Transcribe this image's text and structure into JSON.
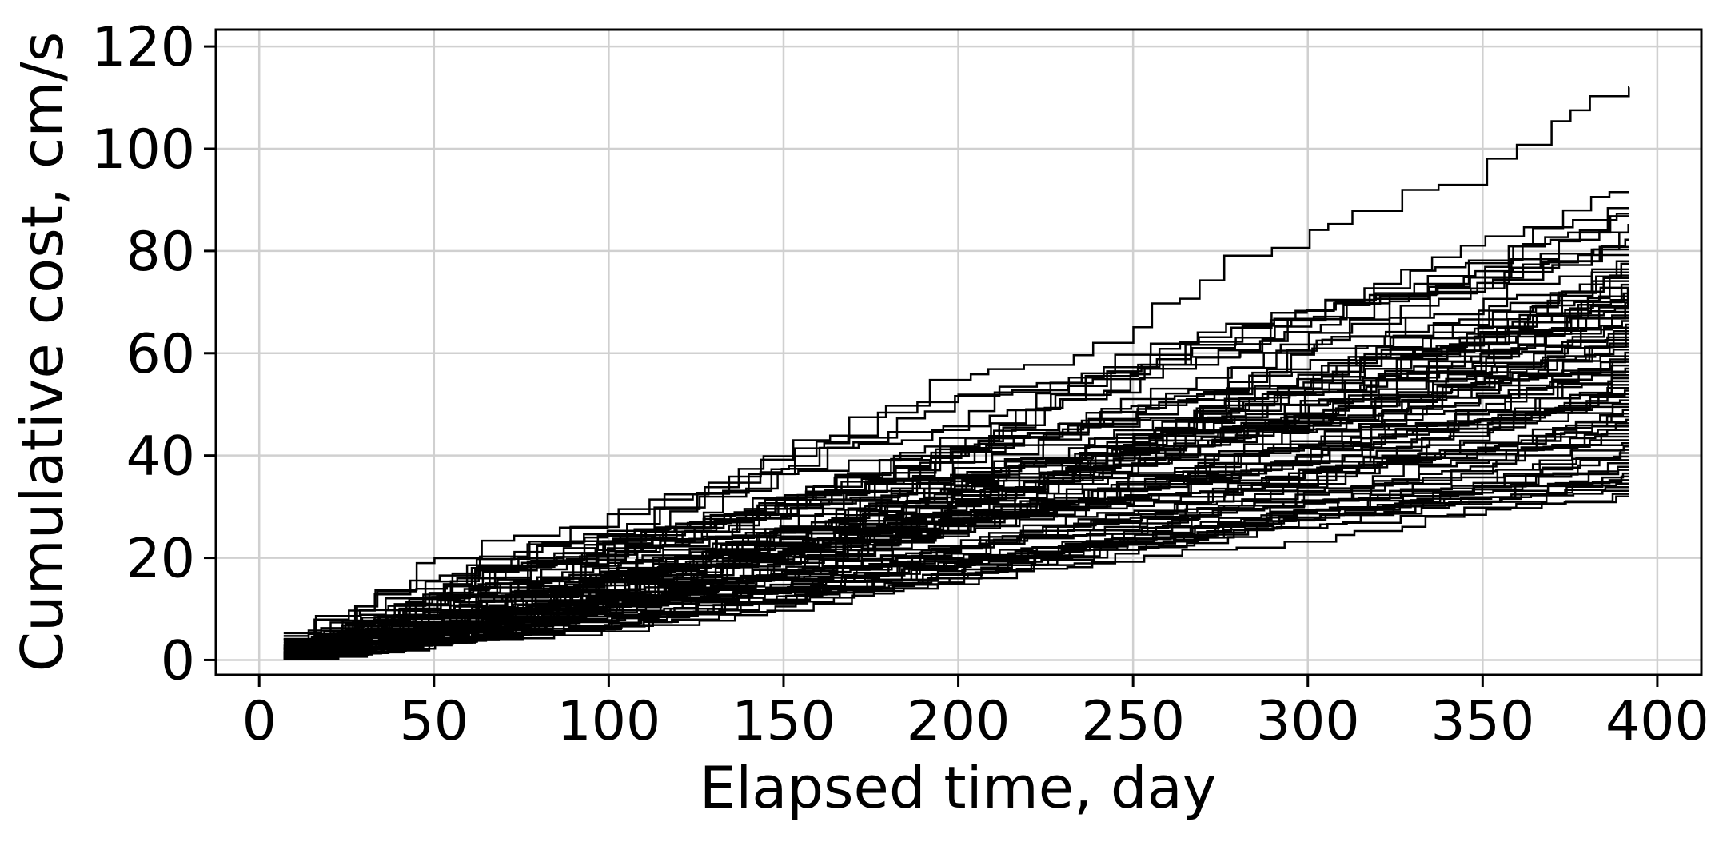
{
  "figure": {
    "background_color": "#ffffff",
    "line_color": "#000000",
    "grid_color": "#d0d0d0",
    "spine_color": "#000000"
  },
  "chart_data": {
    "type": "line",
    "subtype": "step-ensemble",
    "title": "",
    "xlabel": "Elapsed time, day",
    "ylabel": "Cumulative cost, cm/s",
    "xticks": [
      0,
      50,
      100,
      150,
      200,
      250,
      300,
      350,
      400
    ],
    "yticks": [
      0,
      20,
      40,
      60,
      80,
      100,
      120
    ],
    "xlim": [
      -12.4,
      412.6
    ],
    "ylim": [
      -2.9,
      123.3
    ],
    "grid": true,
    "legend": false,
    "x_start_day": 7,
    "x_end_day": 392,
    "n_series": 85,
    "step_interval_days_range": [
      5,
      16
    ],
    "seed": 42,
    "series_final_values": [
      112.0,
      91.5,
      88.4,
      87.3,
      86.8,
      85.1,
      83.6,
      82.2,
      80.8,
      80.3,
      79.2,
      78.0,
      77.5,
      76.4,
      75.8,
      75.2,
      74.7,
      74.1,
      73.4,
      72.8,
      72.4,
      71.7,
      71.1,
      70.4,
      69.9,
      69.2,
      68.7,
      68.1,
      67.4,
      66.8,
      66.3,
      65.6,
      65.0,
      64.3,
      63.8,
      63.1,
      62.6,
      61.9,
      61.3,
      60.7,
      60.1,
      59.4,
      58.8,
      58.3,
      57.6,
      57.0,
      56.4,
      55.7,
      55.1,
      54.5,
      53.8,
      53.2,
      52.7,
      52.0,
      51.4,
      50.8,
      50.1,
      49.5,
      48.9,
      48.2,
      47.6,
      47.0,
      46.3,
      45.7,
      45.0,
      44.3,
      43.7,
      43.0,
      42.4,
      41.8,
      41.1,
      40.5,
      39.8,
      39.1,
      38.5,
      37.8,
      37.2,
      36.5,
      35.9,
      35.2,
      34.5,
      33.8,
      33.1,
      32.5,
      32.0
    ],
    "final_value_range": [
      32,
      112
    ],
    "start_value_range": [
      0.3,
      3.5
    ]
  }
}
